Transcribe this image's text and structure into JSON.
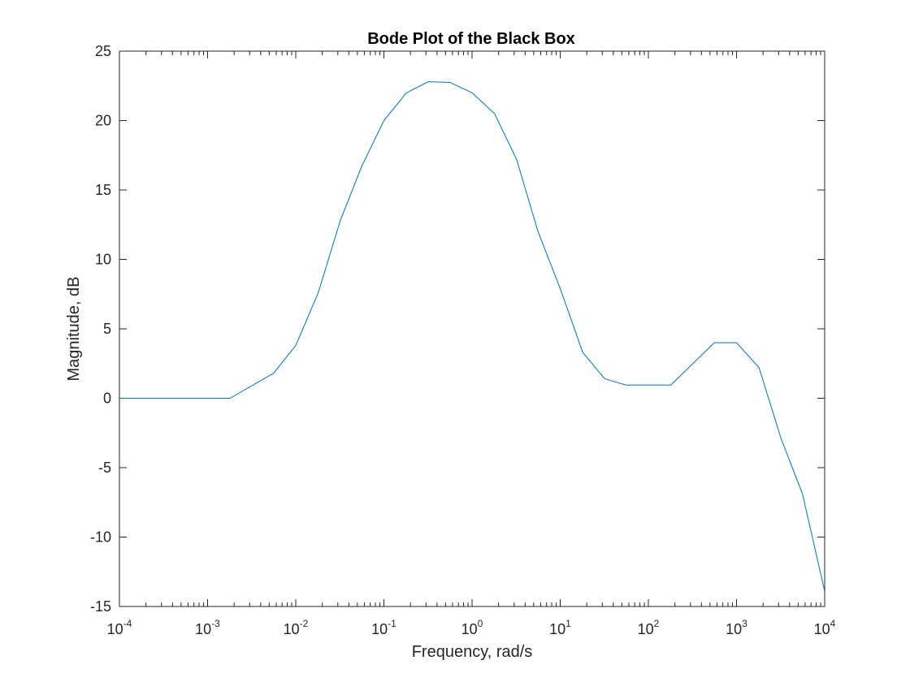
{
  "chart_data": {
    "type": "line",
    "title": "Bode Plot of the Black Box",
    "xlabel": "Frequency, rad/s",
    "ylabel": "Magnitude, dB",
    "x_scale": "log",
    "xlim": [
      0.0001,
      10000
    ],
    "ylim": [
      -15,
      25
    ],
    "grid": false,
    "x_ticks": [
      {
        "base": "10",
        "exp": "-4",
        "value": 0.0001
      },
      {
        "base": "10",
        "exp": "-3",
        "value": 0.001
      },
      {
        "base": "10",
        "exp": "-2",
        "value": 0.01
      },
      {
        "base": "10",
        "exp": "-1",
        "value": 0.1
      },
      {
        "base": "10",
        "exp": "0",
        "value": 1
      },
      {
        "base": "10",
        "exp": "1",
        "value": 10
      },
      {
        "base": "10",
        "exp": "2",
        "value": 100
      },
      {
        "base": "10",
        "exp": "3",
        "value": 1000
      },
      {
        "base": "10",
        "exp": "4",
        "value": 10000
      }
    ],
    "y_ticks": [
      {
        "label": "25",
        "value": 25
      },
      {
        "label": "20",
        "value": 20
      },
      {
        "label": "15",
        "value": 15
      },
      {
        "label": "10",
        "value": 10
      },
      {
        "label": "5",
        "value": 5
      },
      {
        "label": "0",
        "value": 0
      },
      {
        "label": "-5",
        "value": -5
      },
      {
        "label": "-10",
        "value": -10
      },
      {
        "label": "-15",
        "value": -15
      }
    ],
    "series": [
      {
        "color": "#0072bd",
        "x": [
          0.0001,
          0.0018,
          0.0056,
          0.01,
          0.018,
          0.032,
          0.056,
          0.1,
          0.18,
          0.32,
          0.56,
          1,
          1.8,
          3.2,
          5.6,
          10,
          18,
          32,
          56,
          100,
          180,
          320,
          560,
          1000,
          1800,
          3200,
          5600,
          10000
        ],
        "y": [
          0,
          0,
          1.8,
          3.8,
          7.6,
          12.8,
          16.7,
          20.0,
          22.0,
          22.8,
          22.75,
          22.0,
          20.5,
          17.2,
          12.0,
          7.9,
          3.3,
          1.4,
          0.95,
          0.95,
          0.95,
          2.5,
          4.0,
          4.0,
          2.2,
          -2.9,
          -6.9,
          -13.9
        ]
      }
    ]
  }
}
